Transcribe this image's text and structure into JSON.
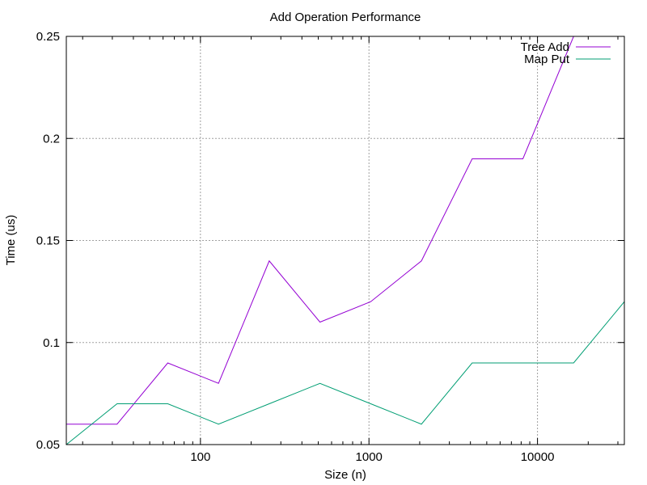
{
  "chart_data": {
    "type": "line",
    "title": "Add Operation Performance",
    "xlabel": "Size (n)",
    "ylabel": "Time (us)",
    "x_scale": "log",
    "xlim": [
      16,
      32768
    ],
    "ylim": [
      0.05,
      0.25
    ],
    "x_ticks": [
      {
        "value": 100,
        "label": "100"
      },
      {
        "value": 1000,
        "label": "1000"
      },
      {
        "value": 10000,
        "label": "10000"
      }
    ],
    "y_ticks": [
      {
        "value": 0.05,
        "label": "0.05"
      },
      {
        "value": 0.1,
        "label": "0.1"
      },
      {
        "value": 0.15,
        "label": "0.15"
      },
      {
        "value": 0.2,
        "label": "0.2"
      },
      {
        "value": 0.25,
        "label": "0.25"
      }
    ],
    "grid": true,
    "legend_position": "top-right",
    "x": [
      16,
      32,
      64,
      128,
      256,
      512,
      1024,
      2048,
      4096,
      8192,
      16384,
      32768
    ],
    "series": [
      {
        "name": "Tree Add",
        "color": "#9400d3",
        "values": [
          0.06,
          0.06,
          0.09,
          0.08,
          0.14,
          0.11,
          0.12,
          0.14,
          0.19,
          0.19,
          0.25,
          0.3
        ]
      },
      {
        "name": "Map Put",
        "color": "#009e73",
        "values": [
          0.05,
          0.07,
          0.07,
          0.06,
          0.07,
          0.08,
          0.07,
          0.06,
          0.09,
          0.09,
          0.09,
          0.12
        ]
      }
    ]
  }
}
